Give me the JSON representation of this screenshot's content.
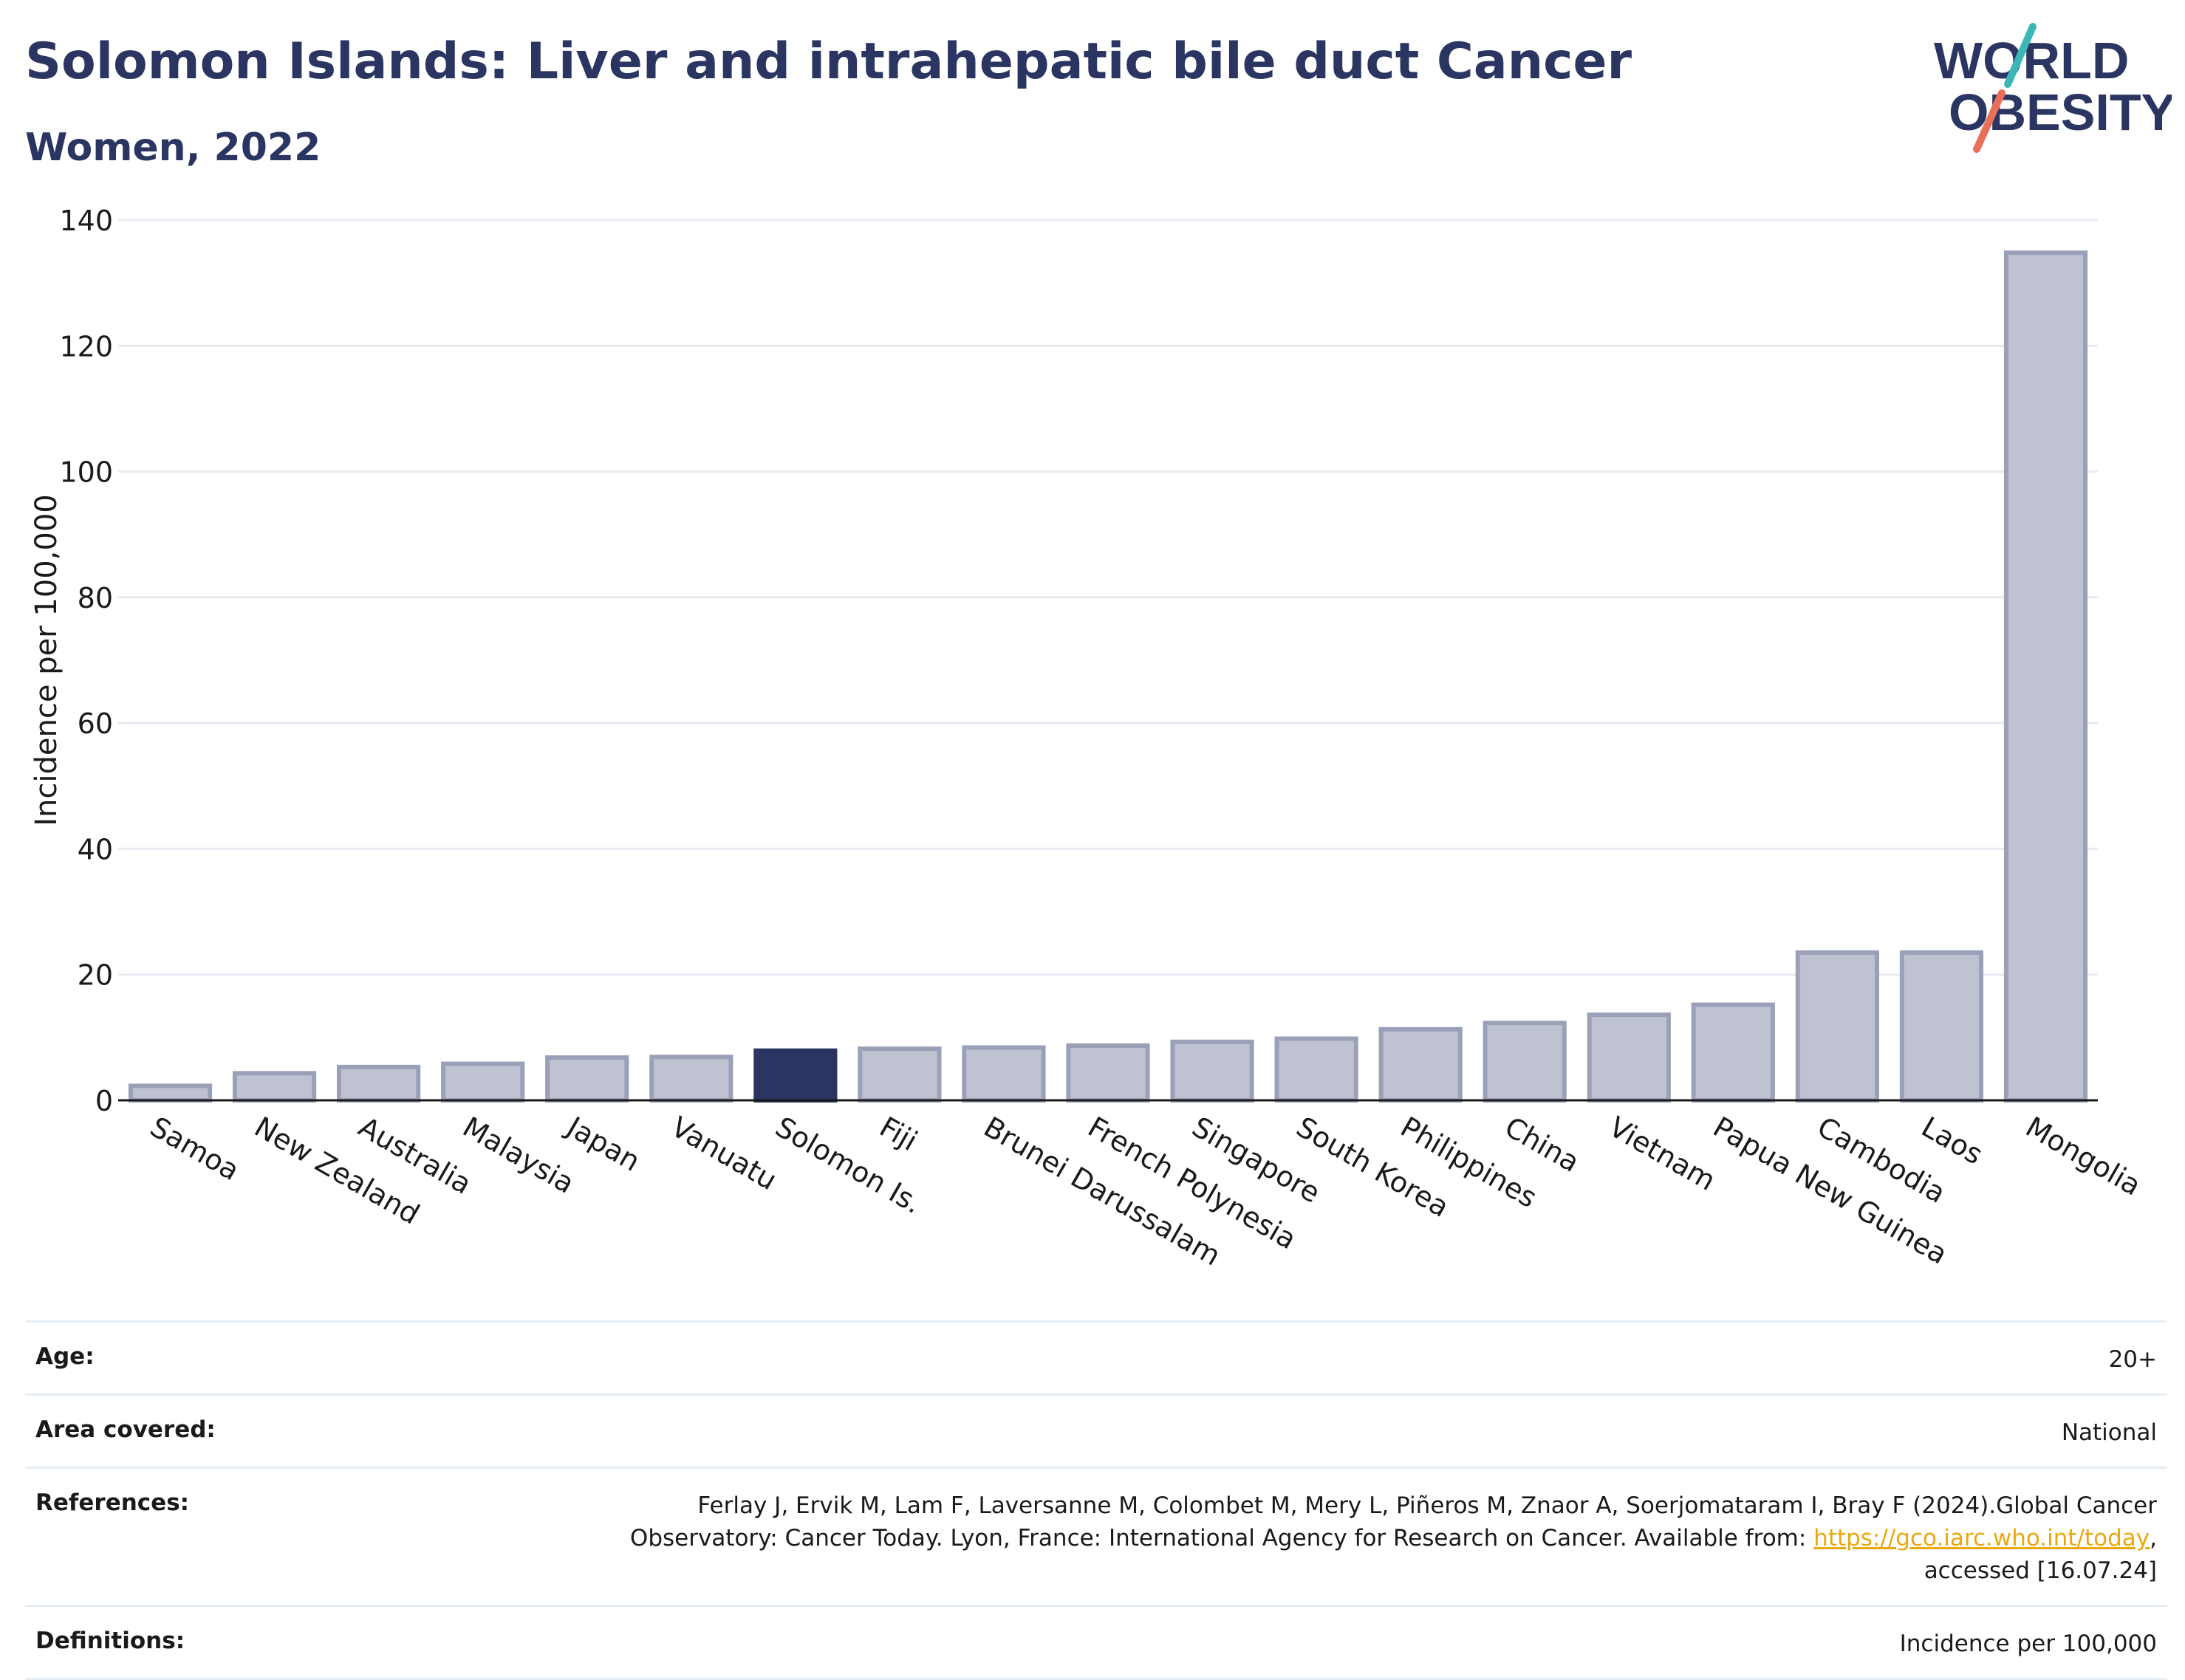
{
  "header": {
    "title": "Solomon Islands: Liver and intrahepatic bile duct Cancer",
    "subtitle": "Women, 2022"
  },
  "logo": {
    "line1": "WORLD",
    "line2": "OBESITY",
    "accent_teal": "#3bb7b7",
    "accent_coral": "#e8705a",
    "text_color": "#2b3561"
  },
  "chart_data": {
    "type": "bar",
    "ylabel": "Incidence per 100,000",
    "xlabel": "",
    "ylim": [
      0,
      140
    ],
    "yticks": [
      0,
      20,
      40,
      60,
      80,
      100,
      120,
      140
    ],
    "grid": true,
    "highlight": "Solomon Is.",
    "colors": {
      "default_fill": "#bfc3d1",
      "default_stroke": "#9aa0b8",
      "highlight_fill": "#2b3561"
    },
    "categories": [
      "Samoa",
      "New Zealand",
      "Australia",
      "Malaysia",
      "Japan",
      "Vanuatu",
      "Solomon Is.",
      "Fiji",
      "Brunei Darussalam",
      "French Polynesia",
      "Singapore",
      "South Korea",
      "Philippines",
      "China",
      "Vietnam",
      "Papua New Guinea",
      "Cambodia",
      "Laos",
      "Mongolia"
    ],
    "values": [
      2.3,
      4.3,
      5.3,
      5.8,
      6.8,
      6.9,
      7.9,
      8.2,
      8.4,
      8.7,
      9.3,
      9.8,
      11.3,
      12.3,
      13.6,
      15.2,
      23.5,
      23.5,
      134.8
    ]
  },
  "info": {
    "age_label": "Age:",
    "age_value": "20+",
    "area_label": "Area covered:",
    "area_value": "National",
    "references_label": "References:",
    "references_text_1": "Ferlay J, Ervik M, Lam F, Laversanne M, Colombet M, Mery L, Piñeros M, Znaor A, Soerjomataram I, Bray F (2024).Global Cancer Observatory: Cancer Today. Lyon, France: International Agency for Research on Cancer. Available from: ",
    "references_link": "https://gco.iarc.who.int/today",
    "references_text_2": ", accessed [16.07.24]",
    "definitions_label": "Definitions:",
    "definitions_value": "Incidence per 100,000"
  }
}
